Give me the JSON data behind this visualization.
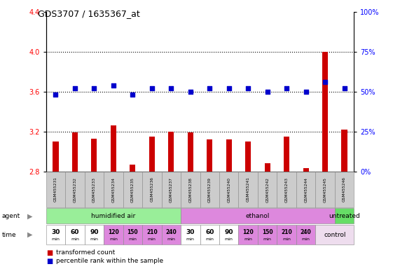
{
  "title": "GDS3707 / 1635367_at",
  "samples": [
    "GSM455231",
    "GSM455232",
    "GSM455233",
    "GSM455234",
    "GSM455235",
    "GSM455236",
    "GSM455237",
    "GSM455238",
    "GSM455239",
    "GSM455240",
    "GSM455241",
    "GSM455242",
    "GSM455243",
    "GSM455244",
    "GSM455245",
    "GSM455246"
  ],
  "bar_values": [
    3.1,
    3.19,
    3.13,
    3.26,
    2.87,
    3.15,
    3.2,
    3.19,
    3.12,
    3.12,
    3.1,
    2.88,
    3.15,
    2.83,
    4.0,
    3.22
  ],
  "dot_values": [
    48,
    52,
    52,
    54,
    48,
    52,
    52,
    50,
    52,
    52,
    52,
    50,
    52,
    50,
    56,
    52
  ],
  "ylim_left": [
    2.8,
    4.4
  ],
  "ylim_right": [
    0,
    100
  ],
  "yticks_left": [
    2.8,
    3.2,
    3.6,
    4.0,
    4.4
  ],
  "yticks_right": [
    0,
    25,
    50,
    75,
    100
  ],
  "bar_color": "#cc0000",
  "dot_color": "#0000cc",
  "agent_groups": [
    {
      "label": "humidified air",
      "start": 0,
      "end": 7,
      "color": "#99ee99"
    },
    {
      "label": "ethanol",
      "start": 7,
      "end": 15,
      "color": "#dd88dd"
    },
    {
      "label": "untreated",
      "start": 15,
      "end": 16,
      "color": "#66dd66"
    }
  ],
  "time_colors_14": [
    "#ffffff",
    "#ffffff",
    "#ffffff",
    "#dd88dd",
    "#dd88dd",
    "#dd88dd",
    "#dd88dd",
    "#ffffff",
    "#ffffff",
    "#ffffff",
    "#dd88dd",
    "#dd88dd",
    "#dd88dd",
    "#dd88dd"
  ],
  "time_nums_14": [
    "30",
    "60",
    "90",
    "120",
    "150",
    "210",
    "240",
    "30",
    "60",
    "90",
    "120",
    "150",
    "210",
    "240"
  ],
  "control_color": "#eeddee",
  "bg_color": "#ffffff",
  "sample_bg": "#cccccc",
  "grid_dotted_color": "black",
  "left_axis_color": "red",
  "right_axis_color": "blue"
}
